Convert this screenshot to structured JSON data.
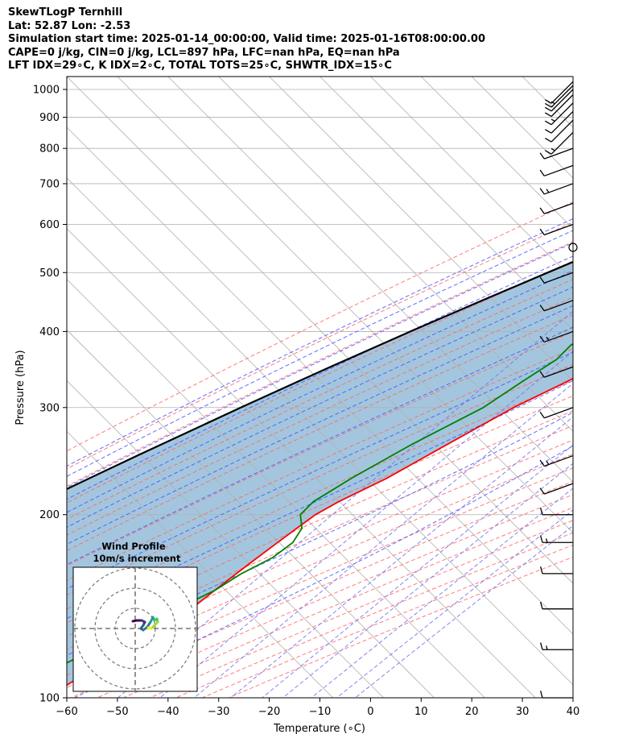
{
  "header": {
    "title": "SkewTLogP Ternhill",
    "location": "Lat: 52.87   Lon: -2.53",
    "times": "Simulation start time: 2025-01-14_00:00:00, Valid time: 2025-01-16T08:00:00.00",
    "params1": "CAPE=0 j/kg, CIN=0 j/kg, LCL=897 hPa, LFC=nan hPa, EQ=nan hPa",
    "params2": "LFT IDX=29∘C, K IDX=2∘C, TOTAL TOTS=25∘C, SHWTR_IDX=15∘C"
  },
  "chart_data": {
    "type": "line",
    "xlabel": "Temperature (∘C)",
    "ylabel": "Pressure (hPa)",
    "xlim": [
      -60,
      40
    ],
    "ylim": [
      1050,
      100
    ],
    "y_scale": "log",
    "skew": "45 degrees",
    "grid": true,
    "x_ticks": [
      -60,
      -50,
      -40,
      -30,
      -20,
      -10,
      0,
      10,
      20,
      30,
      40
    ],
    "x_tick_labels": [
      "−60",
      "−50",
      "−40",
      "−30",
      "−20",
      "−10",
      "0",
      "10",
      "20",
      "30",
      "40"
    ],
    "y_ticks": [
      1000,
      900,
      800,
      700,
      600,
      500,
      400,
      300,
      200,
      100
    ],
    "y_tick_labels": [
      "1000",
      "900",
      "800",
      "700",
      "600",
      "500",
      "400",
      "300",
      "200",
      "100"
    ],
    "colors": {
      "temperature": "#ff0000",
      "dewpoint": "#008000",
      "parcel": "#000000",
      "cape_shading": "#a3c6de",
      "dry_adiabats": "#ff6666",
      "moist_adiabats": "#4455ff",
      "mixing_ratio": "#7777ee",
      "isotherms": "#aaaaaa",
      "zero_isotherm_highlight": "#9933cc"
    },
    "series": [
      {
        "key": "temperature",
        "pressure": [
          1030,
          1020,
          1000,
          980,
          950,
          920,
          900,
          850,
          800,
          780,
          750,
          700,
          680,
          650,
          600,
          550,
          500,
          480,
          450,
          400,
          350,
          300,
          260,
          230,
          210,
          200,
          190,
          180,
          170,
          160,
          150,
          140,
          130,
          120,
          110,
          100
        ],
        "temperature": [
          2.5,
          7.5,
          11.5,
          12.5,
          12.5,
          12.0,
          11.5,
          10.0,
          7.5,
          6.0,
          4.5,
          2.0,
          1.0,
          0.5,
          0.0,
          -1.0,
          -4.0,
          -5.0,
          -7.5,
          -13.5,
          -20.5,
          -29.0,
          -35.0,
          -40.0,
          -45.0,
          -47.0,
          -48.0,
          -49.0,
          -50.0,
          -51.0,
          -52.0,
          -53.0,
          -55.0,
          -58.0,
          -61.0,
          -64.0
        ]
      },
      {
        "key": "dewpoint",
        "pressure": [
          1030,
          1000,
          980,
          960,
          940,
          920,
          900,
          870,
          850,
          800,
          750,
          700,
          650,
          600,
          550,
          500,
          450,
          420,
          380,
          360,
          330,
          300,
          260,
          230,
          210,
          200,
          190,
          180,
          170,
          160,
          150,
          140,
          130,
          120,
          110,
          100
        ],
        "dewpoint": [
          -5.0,
          -9.0,
          -16.0,
          -17.5,
          -18.0,
          -16.0,
          -13.0,
          -9.0,
          -7.5,
          -6.0,
          -5.5,
          -5.0,
          -6.5,
          -9.0,
          -11.0,
          -14.0,
          -20.0,
          -26.5,
          -30.0,
          -30.0,
          -32.5,
          -35.0,
          -42.0,
          -47.0,
          -50.0,
          -50.0,
          -47.0,
          -46.0,
          -47.0,
          -50.0,
          -52.0,
          -56.0,
          -60.0,
          -64.0,
          -69.0,
          -74.0
        ]
      },
      {
        "key": "parcel",
        "pressure": [
          1030,
          1000,
          950,
          900,
          897,
          850,
          800,
          750,
          700,
          650,
          600,
          550,
          500,
          450,
          400,
          350,
          300,
          250,
          200,
          150,
          100
        ],
        "temperature": [
          2.5,
          0.0,
          -2.8,
          -5.5,
          -5.7,
          -10.5,
          -14.8,
          -19.5,
          -24.6,
          -30.0,
          -35.8,
          -42.0,
          -48.9,
          -56.3,
          -64.4,
          -73.2,
          -82.9,
          -93.9,
          -106.8,
          -122.2,
          -145.0
        ]
      },
      {
        "key": "surface_parcel_segment",
        "pressure": [
          1030,
          897
        ],
        "temperature": [
          -5.0,
          -5.7
        ]
      }
    ],
    "wind_barbs_pressure": [
      1030,
      1015,
      1000,
      980,
      950,
      920,
      890,
      850,
      800,
      750,
      700,
      650,
      600,
      550,
      500,
      450,
      400,
      350,
      300,
      250,
      225,
      200,
      180,
      160,
      140,
      120,
      100
    ],
    "inset": {
      "title": "Wind Profile",
      "subtitle": "10m/s increment"
    }
  }
}
